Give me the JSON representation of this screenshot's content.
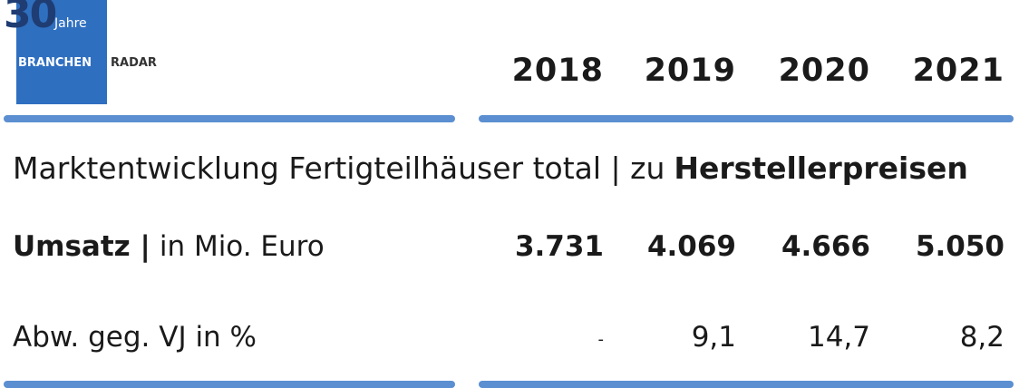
{
  "logo": {
    "number": "30",
    "tag": "Jahre",
    "brand_first": "BRANCHEN",
    "brand_second": "RADAR"
  },
  "table": {
    "header": [
      "2018",
      "2019",
      "2020",
      "2021"
    ],
    "section": {
      "title": "Marktentwicklung Fertigteilhäuser total | zu",
      "title_bold": "Herstellerpreisen"
    },
    "rows": [
      {
        "label_bold": "Umsatz |",
        "label": "in Mio. Euro",
        "cells": [
          "3.731",
          "4.069",
          "4.666",
          "5.050"
        ]
      },
      {
        "label": "Abw. geg. VJ in %",
        "cells": [
          "-",
          "9,1",
          "14,7",
          "8,2"
        ]
      }
    ]
  }
}
